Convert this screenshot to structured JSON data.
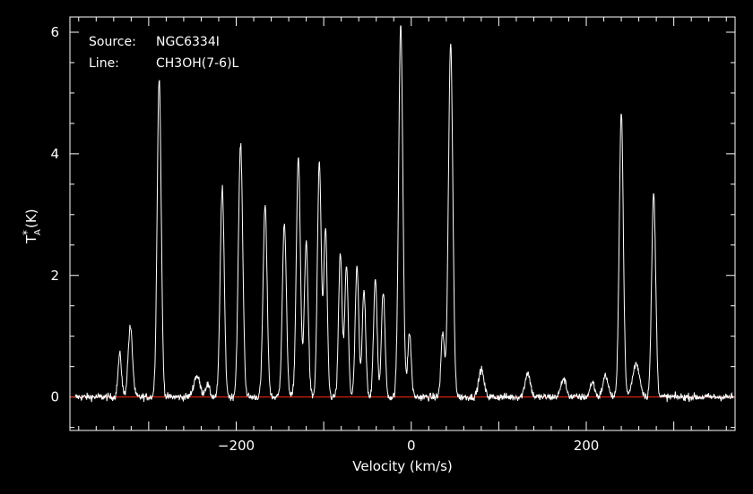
{
  "colors": {
    "background": "#000000",
    "spectrum": "#ffffff",
    "baseline": "#ff2a1a",
    "axes": "#ffffff"
  },
  "info": {
    "source_label": "Source:",
    "source_value": "NGC6334I",
    "line_label": "Line:",
    "line_value": "CH3OH(7-6)L"
  },
  "chart_data": {
    "type": "line",
    "title": "",
    "xlabel": "Velocity (km/s)",
    "ylabel_main": "T",
    "ylabel_sup": "*",
    "ylabel_sub": "A",
    "ylabel_unit": " (K)",
    "xlim": [
      -390,
      370
    ],
    "ylim": [
      -0.55,
      6.25
    ],
    "x_ticks": [
      {
        "value": -200,
        "label": "−200"
      },
      {
        "value": 0,
        "label": "0"
      },
      {
        "value": 200,
        "label": "200"
      }
    ],
    "y_ticks": [
      {
        "value": 0,
        "label": "0"
      },
      {
        "value": 2,
        "label": "2"
      },
      {
        "value": 4,
        "label": "4"
      },
      {
        "value": 6,
        "label": "6"
      }
    ],
    "baseline_y": 0,
    "peaks": [
      {
        "v": -333,
        "amp": 0.7,
        "width": 2.0
      },
      {
        "v": -321,
        "amp": 1.15,
        "width": 2.5
      },
      {
        "v": -288,
        "amp": 5.25,
        "width": 2.3
      },
      {
        "v": -245,
        "amp": 0.35,
        "width": 3.5
      },
      {
        "v": -233,
        "amp": 0.2,
        "width": 2.5
      },
      {
        "v": -216,
        "amp": 3.45,
        "width": 2.3
      },
      {
        "v": -195,
        "amp": 4.15,
        "width": 2.5
      },
      {
        "v": -167,
        "amp": 3.15,
        "width": 2.3
      },
      {
        "v": -145,
        "amp": 2.85,
        "width": 2.3
      },
      {
        "v": -129,
        "amp": 3.95,
        "width": 2.3
      },
      {
        "v": -120,
        "amp": 2.55,
        "width": 2.2
      },
      {
        "v": -105,
        "amp": 3.85,
        "width": 2.2
      },
      {
        "v": -98,
        "amp": 2.75,
        "width": 2.0
      },
      {
        "v": -81,
        "amp": 2.35,
        "width": 2.0
      },
      {
        "v": -74,
        "amp": 2.15,
        "width": 2.0
      },
      {
        "v": -62,
        "amp": 2.15,
        "width": 2.0
      },
      {
        "v": -54,
        "amp": 1.75,
        "width": 2.0
      },
      {
        "v": -41,
        "amp": 1.95,
        "width": 2.0
      },
      {
        "v": -32,
        "amp": 1.75,
        "width": 2.0
      },
      {
        "v": -12,
        "amp": 6.15,
        "width": 2.4
      },
      {
        "v": -2,
        "amp": 1.05,
        "width": 2.0
      },
      {
        "v": 36,
        "amp": 1.05,
        "width": 2.0
      },
      {
        "v": 45,
        "amp": 5.8,
        "width": 2.5
      },
      {
        "v": 80,
        "amp": 0.45,
        "width": 3.0
      },
      {
        "v": 133,
        "amp": 0.4,
        "width": 3.0
      },
      {
        "v": 174,
        "amp": 0.3,
        "width": 3.0
      },
      {
        "v": 207,
        "amp": 0.25,
        "width": 2.5
      },
      {
        "v": 222,
        "amp": 0.35,
        "width": 3.0
      },
      {
        "v": 240,
        "amp": 4.7,
        "width": 2.3
      },
      {
        "v": 257,
        "amp": 0.55,
        "width": 4.0
      },
      {
        "v": 277,
        "amp": 3.35,
        "width": 2.3
      }
    ],
    "noise_rms": 0.045
  }
}
